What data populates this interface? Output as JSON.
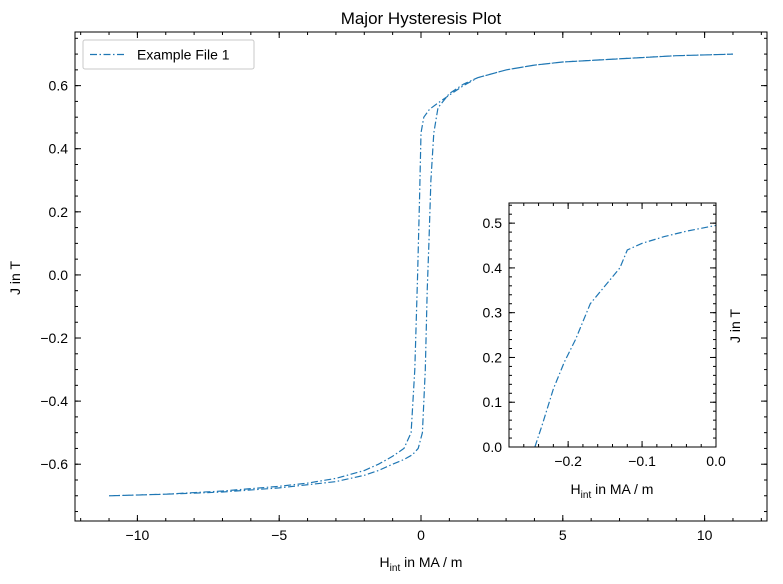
{
  "chart_data": [
    {
      "type": "line",
      "title": "Major Hysteresis Plot",
      "xlabel_main": "H",
      "xlabel_sub": "int",
      "xlabel_rest": " in MA / m",
      "ylabel": "J in T",
      "xlim": [
        -12.2,
        12.2
      ],
      "ylim": [
        -0.78,
        0.77
      ],
      "xticks": [
        -10,
        -5,
        0,
        5,
        10
      ],
      "xtick_labels": [
        "−10",
        "−5",
        "0",
        "5",
        "10"
      ],
      "yticks": [
        -0.6,
        -0.4,
        -0.2,
        0.0,
        0.2,
        0.4,
        0.6
      ],
      "ytick_labels": [
        "−0.6",
        "−0.4",
        "−0.2",
        "0.0",
        "0.2",
        "0.4",
        "0.6"
      ],
      "legend": {
        "placement": "top-left",
        "entries": [
          "Example File 1"
        ]
      },
      "grid": false,
      "series": [
        {
          "name": "Example File 1",
          "color": "#1f77b4",
          "linestyle": "dash-dot",
          "x": [
            -11.0,
            -9.0,
            -7.0,
            -5.0,
            -4.0,
            -3.0,
            -2.0,
            -1.5,
            -1.0,
            -0.6,
            -0.35,
            -0.22,
            -0.12,
            -0.05,
            0.0,
            0.1,
            0.3,
            0.6,
            1.0,
            1.5,
            2.0,
            3.0,
            4.0,
            5.0,
            7.0,
            9.0,
            11.0,
            9.0,
            7.0,
            5.0,
            4.0,
            3.0,
            2.0,
            1.5,
            1.0,
            0.6,
            0.45,
            0.35,
            0.28,
            0.22,
            0.15,
            0.05,
            -0.1,
            -0.3,
            -0.6,
            -1.0,
            -1.5,
            -2.0,
            -3.0,
            -5.0,
            -7.0,
            -9.0,
            -11.0
          ],
          "y": [
            -0.7,
            -0.695,
            -0.685,
            -0.67,
            -0.66,
            -0.645,
            -0.62,
            -0.6,
            -0.575,
            -0.55,
            -0.5,
            -0.3,
            0.0,
            0.25,
            0.45,
            0.5,
            0.525,
            0.545,
            0.57,
            0.6,
            0.625,
            0.65,
            0.665,
            0.675,
            0.685,
            0.695,
            0.7,
            0.695,
            0.685,
            0.675,
            0.665,
            0.65,
            0.625,
            0.605,
            0.575,
            0.53,
            0.45,
            0.3,
            0.1,
            -0.05,
            -0.3,
            -0.5,
            -0.55,
            -0.57,
            -0.585,
            -0.6,
            -0.62,
            -0.635,
            -0.655,
            -0.675,
            -0.688,
            -0.695,
            -0.7
          ]
        }
      ]
    },
    {
      "type": "line",
      "title": "",
      "xlabel_main": "H",
      "xlabel_sub": "int",
      "xlabel_rest": " in MA / m",
      "ylabel": "J in T",
      "xlim": [
        -0.28,
        0.0
      ],
      "ylim": [
        0.0,
        0.545
      ],
      "xticks": [
        -0.2,
        -0.1,
        0.0
      ],
      "xtick_labels": [
        "−0.2",
        "−0.1",
        "0.0"
      ],
      "yticks": [
        0.0,
        0.1,
        0.2,
        0.3,
        0.4,
        0.5
      ],
      "ytick_labels": [
        "0.0",
        "0.1",
        "0.2",
        "0.3",
        "0.4",
        "0.5"
      ],
      "grid": false,
      "series": [
        {
          "name": "Example File 1",
          "color": "#1f77b4",
          "linestyle": "dash-dot",
          "x": [
            -0.245,
            -0.235,
            -0.22,
            -0.205,
            -0.19,
            -0.17,
            -0.15,
            -0.13,
            -0.12,
            -0.1,
            -0.07,
            -0.04,
            0.0
          ],
          "y": [
            0.0,
            0.05,
            0.13,
            0.19,
            0.24,
            0.32,
            0.36,
            0.4,
            0.44,
            0.455,
            0.47,
            0.482,
            0.495
          ]
        }
      ]
    }
  ]
}
